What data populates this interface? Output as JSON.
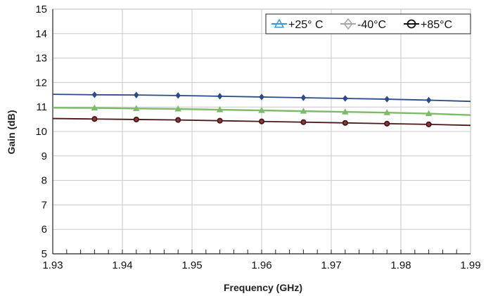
{
  "chart_data": {
    "type": "line",
    "xlabel": "Frequency (GHz)",
    "ylabel": "Gain (dB)",
    "xlim": [
      1.93,
      1.99
    ],
    "ylim": [
      5,
      15
    ],
    "x_ticks": [
      "1.93",
      "1.94",
      "1.95",
      "1.96",
      "1.97",
      "1.98",
      "1.99"
    ],
    "y_ticks": [
      "5",
      "6",
      "7",
      "8",
      "9",
      "10",
      "11",
      "12",
      "13",
      "14",
      "15"
    ],
    "grid": true,
    "legend_position": "top-right",
    "x": [
      1.93,
      1.936,
      1.942,
      1.948,
      1.954,
      1.96,
      1.966,
      1.972,
      1.978,
      1.984,
      1.99
    ],
    "series": [
      {
        "name": "+25° C",
        "marker": "triangle",
        "legend_color": "#3a9ad0",
        "line_color": "#7dbb6a",
        "values": [
          10.97,
          10.96,
          10.94,
          10.92,
          10.89,
          10.86,
          10.83,
          10.8,
          10.77,
          10.73,
          10.67
        ]
      },
      {
        "name": "-40°C",
        "marker": "diamond",
        "legend_color": "#a6a6a6",
        "line_color": "#2a4a8a",
        "values": [
          11.52,
          11.5,
          11.49,
          11.47,
          11.44,
          11.41,
          11.38,
          11.35,
          11.32,
          11.28,
          11.23
        ]
      },
      {
        "name": "+85°C",
        "marker": "circle",
        "legend_color": "#111111",
        "line_color": "#4a1616",
        "values": [
          10.53,
          10.51,
          10.49,
          10.47,
          10.44,
          10.41,
          10.38,
          10.35,
          10.32,
          10.29,
          10.25
        ]
      }
    ]
  }
}
